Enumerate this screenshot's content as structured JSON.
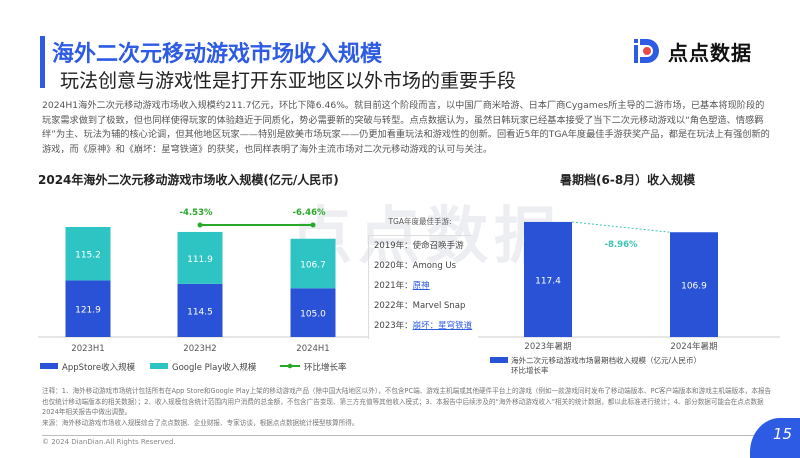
{
  "header": {
    "title": "海外二次元移动游戏市场收入规模",
    "subtitle": "玩法创意与游戏性是打开东亚地区以外市场的重要手段",
    "logo_text": "点点数据",
    "watermark": "点点数据",
    "accent_color": "#2d5be3"
  },
  "paragraph": "2024H1海外二次元移动游戏市场收入规模约211.7亿元，环比下降6.46%。就目前这个阶段而言，以中国厂商米哈游、日本厂商Cygames所主导的二游市场，已基本将现阶段的玩家需求做到了极致，但也同样使得玩家的体验趋近于同质化，势必需要新的突破与转型。点点数据认为，虽然日韩玩家已经基本接受了当下二次元移动游戏以“角色塑造、情感羁绊”为主、玩法为辅的核心论调，但其他地区玩家——特别是欧美市场玩家——仍更加看重玩法和游戏性的创新。回看近5年的TGA年度最佳手游获奖产品，都是在玩法上有强创新的游戏，而《原神》和《崩坏：星穹铁道》的获奖，也同样表明了海外主流市场对二次元移动游戏的认可与关注。",
  "chart_data": [
    {
      "type": "bar",
      "stacked": true,
      "title": "2024年海外二次元移动游戏市场收入规模(亿元/人民币)",
      "categories": [
        "2023H1",
        "2023H2",
        "2024H1"
      ],
      "series": [
        {
          "name": "AppStore收入规模",
          "values": [
            121.9,
            114.5,
            105.0
          ],
          "color": "#2a52d6"
        },
        {
          "name": "Google Play收入规模",
          "values": [
            115.2,
            111.9,
            106.7
          ],
          "color": "#2ec4c4"
        }
      ],
      "line_series": {
        "name": "环比增长率",
        "values": [
          null,
          "-4.53%",
          "-6.46%"
        ],
        "color": "#2aa82a"
      },
      "legend": "bottom"
    },
    {
      "type": "bar",
      "title": "暑期档(6-8月）收入规模",
      "categories": [
        "2023年暑期",
        "2024年暑期"
      ],
      "series": [
        {
          "name": "海外二次元移动游戏市场暑期档收入规模（亿元/人民币）",
          "values": [
            117.4,
            106.9
          ],
          "color": "#2a52d6"
        }
      ],
      "change_label": "-8.96%",
      "change_name": "环比增长率",
      "change_color": "#3cc4b4",
      "legend": "bottom"
    }
  ],
  "tga": {
    "header": "TGA年度最佳手游:",
    "rows": [
      {
        "year": "2019年：",
        "game": "使命召唤手游",
        "link": false
      },
      {
        "year": "2020年：",
        "game": "Among Us",
        "link": false
      },
      {
        "year": "2021年：",
        "game": "原神",
        "link": true
      },
      {
        "year": "2022年：",
        "game": "Marvel Snap",
        "link": false
      },
      {
        "year": "2023年：",
        "game": "崩坏：星穹铁道",
        "link": true
      }
    ]
  },
  "notes": {
    "note": "注释：1、海外移动游戏市场统计包括所有在App Store和Google Play上架的移动游戏产品（除中国大陆地区以外），不包含PC端、游戏主机端或其他硬件平台上的游戏（例如一款游戏同时发布了移动端版本、PC客户端版本和游戏主机端版本，本报告也仅统计移动端版本的相关数据）；2、收入规模包含统计范围内用户消费的总金额，不包含广告变现、第三方充值等其他收入模式；3、本报告中后续涉及的“海外移动游戏收入”相关的统计数据，都以此标准进行统计；4、部分数据可能会在点点数据2024年相关报告中做出调整。",
    "source": "来源：海外移动游戏市场收入规模综合了点点数据、企业财报、专家访谈，根据点点数据统计模型核算所得。"
  },
  "footer": {
    "copyright": "© 2024 DianDian.All Rights Reserved.",
    "page_number": "15"
  }
}
